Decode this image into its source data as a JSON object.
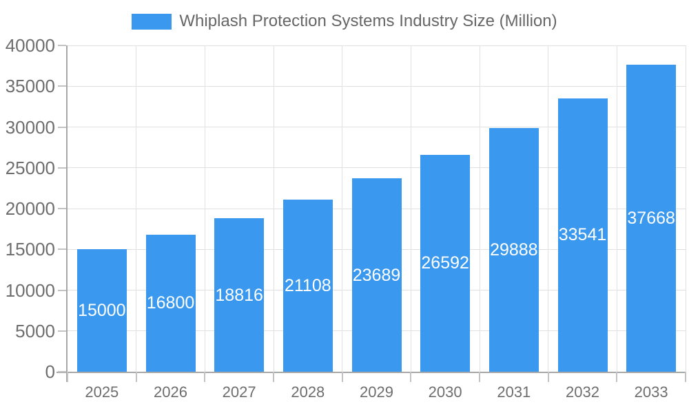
{
  "chart_data": {
    "type": "bar",
    "title": "Whiplash Protection Systems Industry Size (Million)",
    "series_name": "Whiplash Protection Systems Industry Size (Million)",
    "categories": [
      "2025",
      "2026",
      "2027",
      "2028",
      "2029",
      "2030",
      "2031",
      "2032",
      "2033"
    ],
    "values": [
      15000,
      16800,
      18816,
      21108,
      23689,
      26592,
      29888,
      33541,
      37668
    ],
    "value_labels": [
      "15000",
      "16800",
      "18816",
      "21108",
      "23689",
      "26592",
      "29888",
      "33541",
      "37668"
    ],
    "xlabel": "",
    "ylabel": "",
    "ylim": [
      0,
      40000
    ],
    "ytick_step": 5000,
    "ytick_labels": [
      "0",
      "5000",
      "10000",
      "15000",
      "20000",
      "25000",
      "30000",
      "35000",
      "40000"
    ],
    "grid": "horizontal and vertical",
    "legend_position": "top-center",
    "value_label_position": "inside-bar-center",
    "colors": {
      "bar": "#3A99EE",
      "value_label": "#ffffff",
      "grid": "#e0e0e0",
      "axis": "#a6a6a6",
      "tick": "#c2c2c2",
      "tick_label": "#6e6e6e",
      "legend_text": "#666666",
      "background": "#ffffff"
    }
  }
}
